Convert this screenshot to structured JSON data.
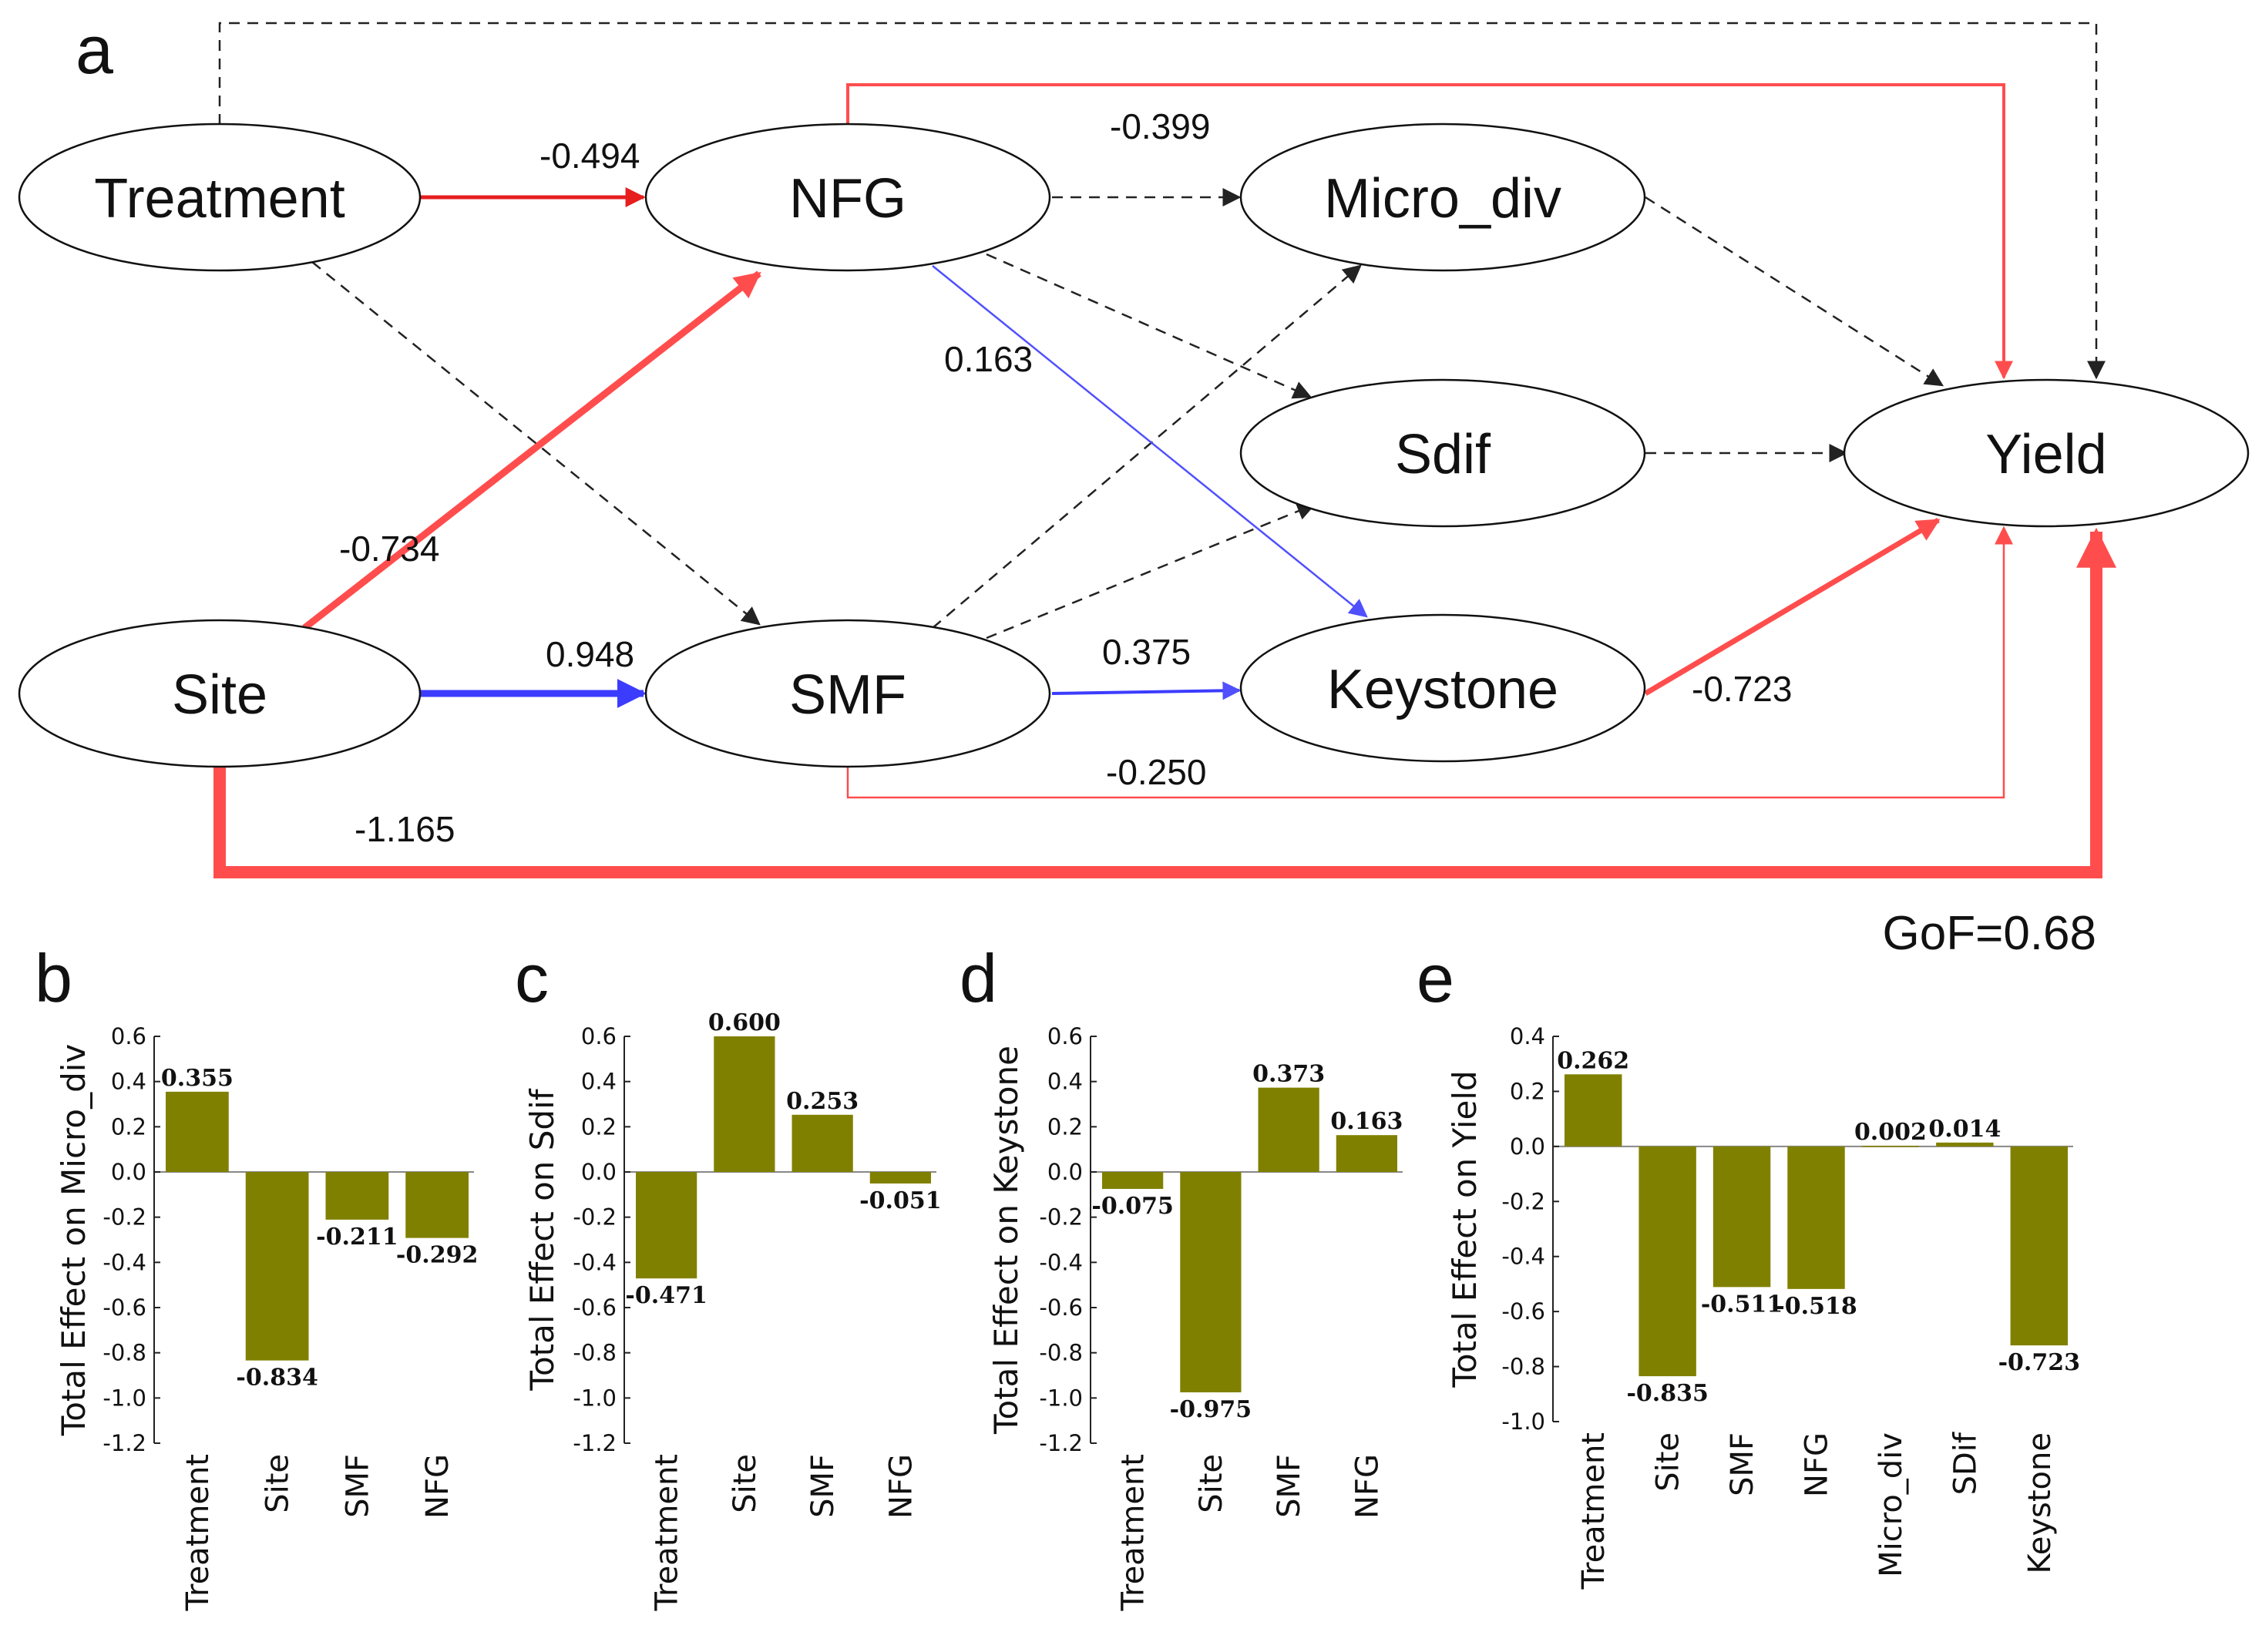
{
  "path_diagram": {
    "panel_label": "a",
    "gof_label": "GoF=0.68",
    "colors": {
      "negative": "#ff4d4d",
      "positive": "#3c3cff",
      "nonsignificant": "#333333"
    },
    "nodes": {
      "treatment": "Treatment",
      "nfg": "NFG",
      "micro_div": "Micro_div",
      "sdif": "Sdif",
      "yield": "Yield",
      "site": "Site",
      "smf": "SMF",
      "keystone": "Keystone"
    },
    "paths": [
      {
        "from": "Treatment",
        "to": "NFG",
        "coef": "-0.494",
        "sign": "negative"
      },
      {
        "from": "NFG",
        "to": "Yield",
        "coef": "-0.399",
        "sign": "negative"
      },
      {
        "from": "NFG",
        "to": "Keystone",
        "coef": "0.163",
        "sign": "positive"
      },
      {
        "from": "Site",
        "to": "NFG",
        "coef": "-0.734",
        "sign": "negative"
      },
      {
        "from": "Site",
        "to": "SMF",
        "coef": "0.948",
        "sign": "positive"
      },
      {
        "from": "SMF",
        "to": "Keystone",
        "coef": "0.375",
        "sign": "positive"
      },
      {
        "from": "Keystone",
        "to": "Yield",
        "coef": "-0.723",
        "sign": "negative"
      },
      {
        "from": "SMF",
        "to": "Yield",
        "coef": "-0.250",
        "sign": "negative"
      },
      {
        "from": "Site",
        "to": "Yield",
        "coef": "-1.165",
        "sign": "negative"
      }
    ]
  },
  "chart_data": [
    {
      "type": "bar",
      "panel_label": "b",
      "ylabel": "Total Effect on Micro_div",
      "categories": [
        "Treatment",
        "Site",
        "SMF",
        "NFG"
      ],
      "values": [
        0.355,
        -0.834,
        -0.211,
        -0.292
      ],
      "value_labels": [
        "0.355",
        "-0.834",
        "-0.211",
        "-0.292"
      ],
      "ylim": [
        -1.2,
        0.6
      ],
      "ticks": [
        "0.6",
        "0.4",
        "0.2",
        "0.0",
        "-0.2",
        "-0.4",
        "-0.6",
        "-0.8",
        "-1.0",
        "-1.2"
      ],
      "bar_color": "#808000"
    },
    {
      "type": "bar",
      "panel_label": "c",
      "ylabel": "Total Effect on Sdif",
      "categories": [
        "Treatment",
        "Site",
        "SMF",
        "NFG"
      ],
      "values": [
        -0.471,
        0.6,
        0.253,
        -0.051
      ],
      "value_labels": [
        "-0.471",
        "0.600",
        "0.253",
        "-0.051"
      ],
      "ylim": [
        -1.2,
        0.6
      ],
      "ticks": [
        "0.6",
        "0.4",
        "0.2",
        "0.0",
        "-0.2",
        "-0.4",
        "-0.6",
        "-0.8",
        "-1.0",
        "-1.2"
      ],
      "bar_color": "#808000"
    },
    {
      "type": "bar",
      "panel_label": "d",
      "ylabel": "Total Effect on Keystone",
      "categories": [
        "Treatment",
        "Site",
        "SMF",
        "NFG"
      ],
      "values": [
        -0.075,
        -0.975,
        0.373,
        0.163
      ],
      "value_labels": [
        "-0.075",
        "-0.975",
        "0.373",
        "0.163"
      ],
      "ylim": [
        -1.2,
        0.6
      ],
      "ticks": [
        "0.6",
        "0.4",
        "0.2",
        "0.0",
        "-0.2",
        "-0.4",
        "-0.6",
        "-0.8",
        "-1.0",
        "-1.2"
      ],
      "bar_color": "#808000"
    },
    {
      "type": "bar",
      "panel_label": "e",
      "ylabel": "Total Effect on Yield",
      "categories": [
        "Treatment",
        "Site",
        "SMF",
        "NFG",
        "Micro_div",
        "SDif",
        "Keystone"
      ],
      "values": [
        0.262,
        -0.835,
        -0.511,
        -0.518,
        0.002,
        0.014,
        -0.723
      ],
      "value_labels": [
        "0.262",
        "-0.835",
        "-0.511",
        "-0.518",
        "0.002",
        "0.014",
        "-0.723"
      ],
      "ylim": [
        -1.0,
        0.4
      ],
      "ticks": [
        "0.4",
        "0.2",
        "0.0",
        "-0.2",
        "-0.4",
        "-0.6",
        "-0.8",
        "-1.0"
      ],
      "bar_color": "#808000"
    }
  ]
}
